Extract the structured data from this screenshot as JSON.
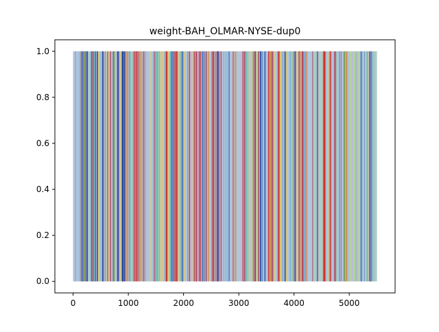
{
  "chart_data": {
    "type": "area",
    "title": "weight-BAH_OLMAR-NYSE-dup0",
    "xlabel": "",
    "ylabel": "",
    "xlim": [
      -330,
      5830
    ],
    "ylim": [
      -0.05,
      1.05
    ],
    "x_range": [
      0,
      5500
    ],
    "x_ticks": [
      0,
      1000,
      2000,
      3000,
      4000,
      5000
    ],
    "x_tick_labels": [
      "0",
      "1000",
      "2000",
      "3000",
      "4000",
      "5000"
    ],
    "y_ticks": [
      0.0,
      0.2,
      0.4,
      0.6,
      0.8,
      1.0
    ],
    "y_tick_labels": [
      "0.0",
      "0.2",
      "0.4",
      "0.6",
      "0.8",
      "1.0"
    ],
    "stacked": true,
    "y_max_total": 1.0,
    "grid": false,
    "legend": "none",
    "palette": [
      "#1f3b99",
      "#4a78c2",
      "#7fb2d9",
      "#a9c4e2",
      "#bcbad8",
      "#9fd0c3",
      "#5fb8b0",
      "#8cc55a",
      "#b6d77a",
      "#e5c75a",
      "#d9812f",
      "#cc2a2a",
      "#b01e3c",
      "#6e9a3a"
    ],
    "background_color": "#b3c7dd"
  }
}
